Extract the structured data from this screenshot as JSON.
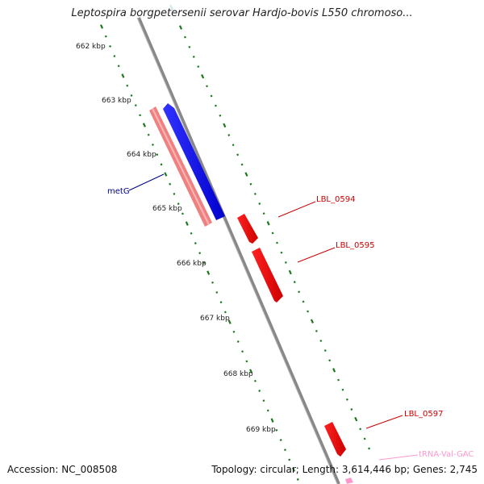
{
  "title": "Leptospira borgpetersenii serovar Hardjo-bovis L550 chromoso...",
  "footer": {
    "accession": "Accession: NC_008508",
    "topology": "Topology: circular; Length: 3,614,446 bp; Genes: 2,745"
  },
  "ticks": [
    {
      "label": "662 kbp"
    },
    {
      "label": "663 kbp"
    },
    {
      "label": "664 kbp"
    },
    {
      "label": "665 kbp"
    },
    {
      "label": "666 kbp"
    },
    {
      "label": "667 kbp"
    },
    {
      "label": "668 kbp"
    },
    {
      "label": "669 kbp"
    }
  ],
  "genes": [
    {
      "name": "metG",
      "strand": "minus",
      "color": "#0000ee",
      "label_color": "#00008b"
    },
    {
      "name": "LBL_0594",
      "strand": "plus",
      "color": "#ee0000",
      "label_color": "#cc0000"
    },
    {
      "name": "LBL_0595",
      "strand": "plus",
      "color": "#ee0000",
      "label_color": "#cc0000"
    },
    {
      "name": "LBL_0597",
      "strand": "plus",
      "color": "#ee0000",
      "label_color": "#cc0000"
    },
    {
      "name": "tRNA-Val-GAC",
      "strand": "plus",
      "color": "#ff99cc",
      "label_color": "#ff99cc"
    }
  ],
  "colors": {
    "backbone": "#888888",
    "tick": "#1a7a1a",
    "cds_pink": "#f08080"
  }
}
